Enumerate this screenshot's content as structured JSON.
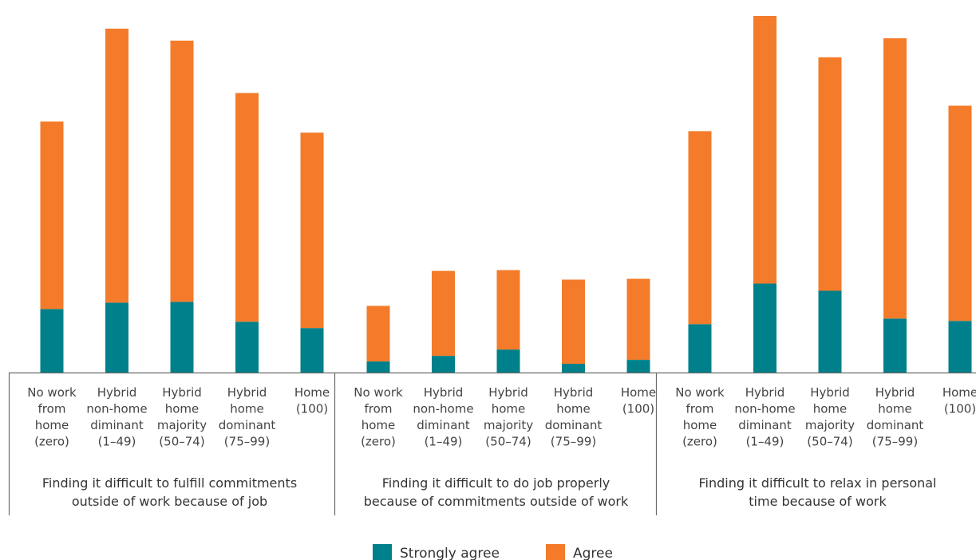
{
  "chart_data": {
    "type": "bar",
    "stacked": true,
    "groups": [
      {
        "label": "Finding it difficult to fulfill commitments outside of work because of job",
        "categories": [
          "No work from home (zero)",
          "Hybrid non-home diminant (1–49)",
          "Hybrid home majority (50–74)",
          "Hybrid home dominant (75–99)",
          "Home (100)"
        ],
        "series": [
          {
            "name": "Strongly agree",
            "values": [
              80,
              88,
              89,
              64,
              56
            ]
          },
          {
            "name": "Agree",
            "values": [
              236,
              345,
              329,
              288,
              246
            ]
          }
        ]
      },
      {
        "label": "Finding it difficult to do job properly because of commitments outside of work",
        "categories": [
          "No work from home (zero)",
          "Hybrid non-home diminant (1–49)",
          "Hybrid home majority (50–74)",
          "Hybrid home dominant (75–99)",
          "Home (100)"
        ],
        "series": [
          {
            "name": "Strongly agree",
            "values": [
              14,
              21,
              29,
              11,
              16
            ]
          },
          {
            "name": "Agree",
            "values": [
              70,
              107,
              100,
              106,
              102
            ]
          }
        ]
      },
      {
        "label": "Finding it difficult to relax in personal time because of work",
        "categories": [
          "No work from home (zero)",
          "Hybrid non-home diminant (1–49)",
          "Hybrid home majority (50–74)",
          "Hybrid home dominant (75–99)",
          "Home (100)"
        ],
        "series": [
          {
            "name": "Strongly agree",
            "values": [
              61,
              112,
              103,
              68,
              65
            ]
          },
          {
            "name": "Agree",
            "values": [
              243,
              337,
              294,
              353,
              271
            ]
          }
        ]
      }
    ],
    "category_label_lines": [
      [
        "No work",
        "from",
        "home",
        "(zero)"
      ],
      [
        "Hybrid",
        "non-home",
        "diminant",
        "(1–49)"
      ],
      [
        "Hybrid",
        "home",
        "majority",
        "(50–74)"
      ],
      [
        "Hybrid",
        "home",
        "dominant",
        "(75–99)"
      ],
      [
        "Home",
        "(100)"
      ]
    ],
    "group_label_lines": [
      [
        "Finding it difficult to fulfill commitments",
        "outside of work because of job"
      ],
      [
        "Finding it difficult to do job properly",
        "because of commitments outside of work"
      ],
      [
        "Finding it difficult to relax in personal",
        "time because of work"
      ]
    ],
    "legend": [
      {
        "name": "Strongly agree",
        "color": "#00808a"
      },
      {
        "name": "Agree",
        "color": "#f47b2a"
      }
    ],
    "colors": {
      "strongly_agree": "#00808a",
      "agree": "#f47b2a"
    },
    "ylim": [
      0,
      450
    ],
    "xlabel": "",
    "ylabel": "",
    "grid": false,
    "legend_position": "bottom"
  }
}
